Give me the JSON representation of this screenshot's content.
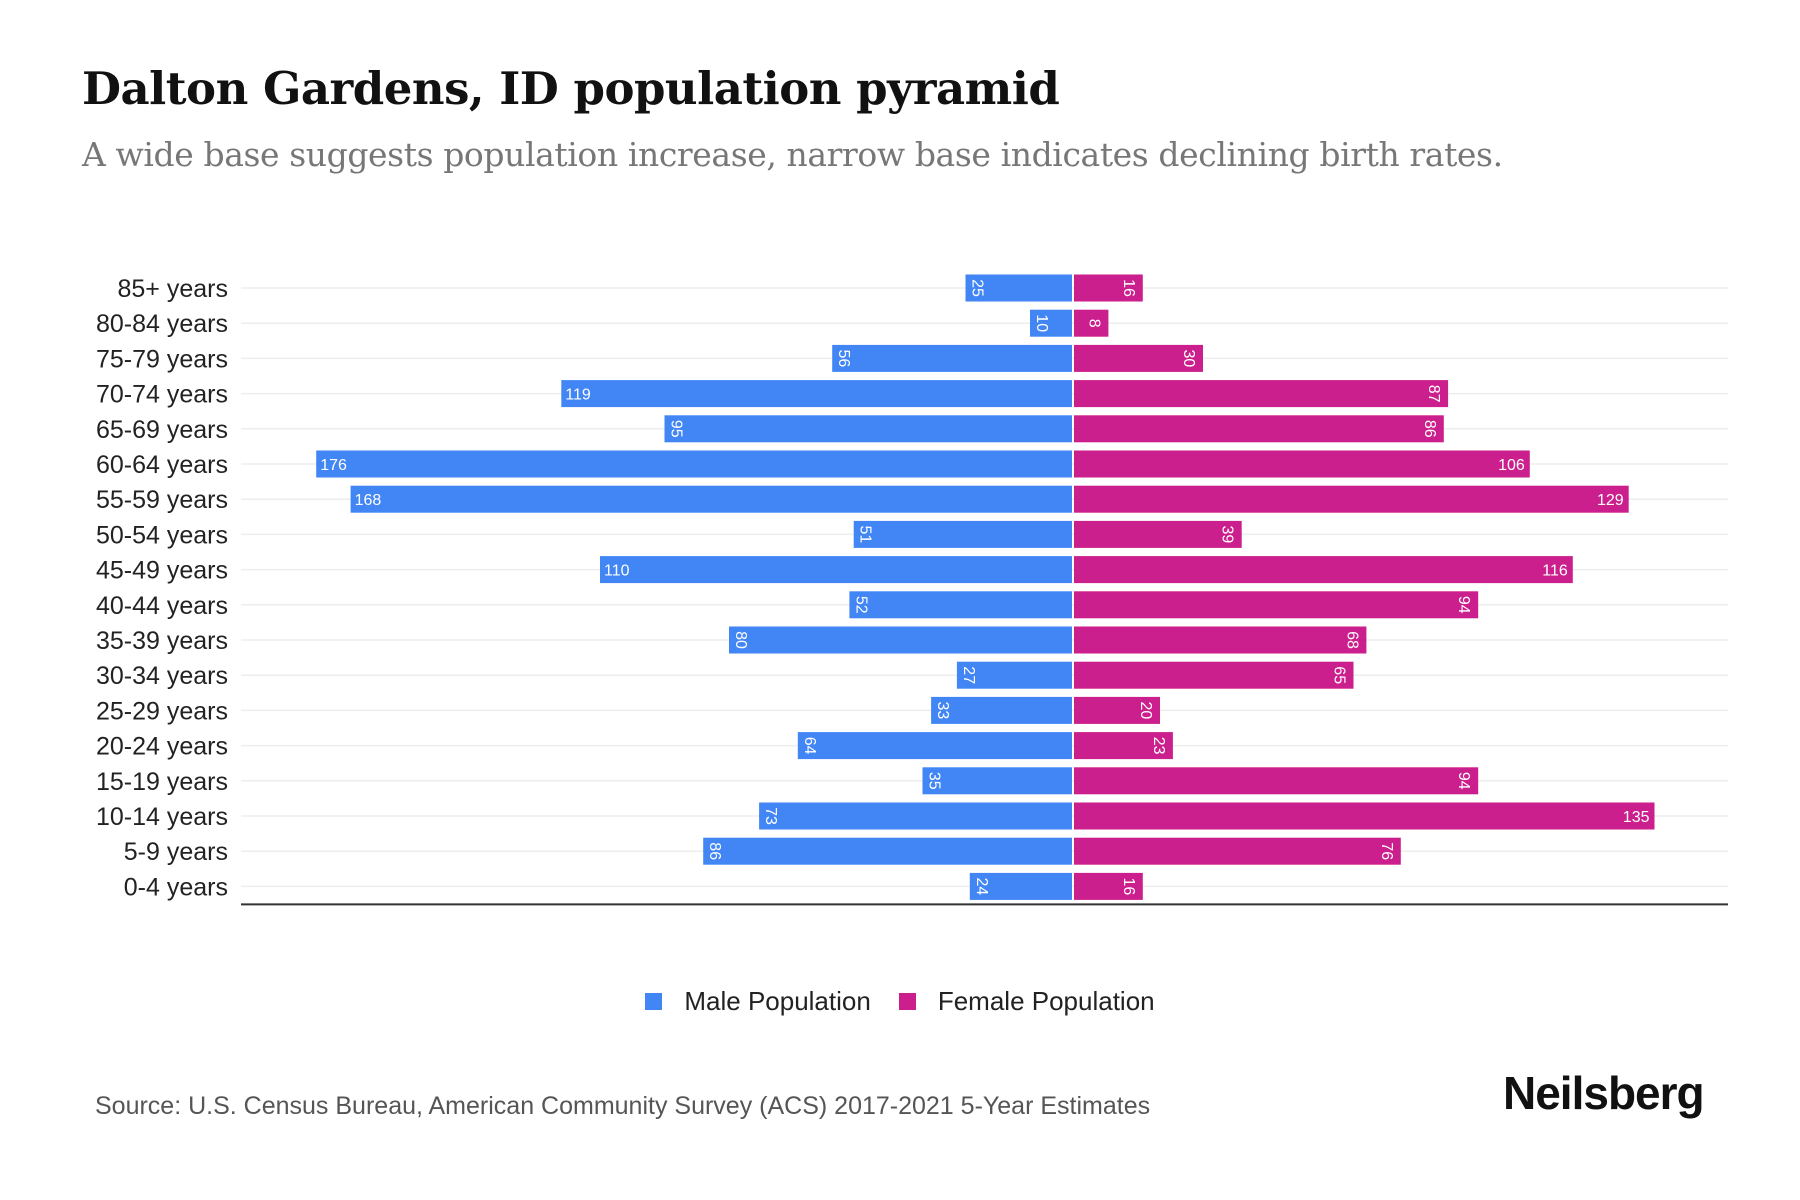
{
  "header": {
    "title": "Dalton Gardens, ID population pyramid",
    "subtitle": "A wide base suggests population increase, narrow base indicates declining birth rates."
  },
  "legend": {
    "male_label": "Male Population",
    "female_label": "Female Population"
  },
  "footer": {
    "source": "Source: U.S. Census Bureau, American Community Survey (ACS) 2017-2021 5-Year Estimates",
    "brand": "Neilsberg"
  },
  "colors": {
    "male": "#4285F4",
    "female": "#CC1F8E",
    "grid": "#EEEEEE",
    "axis": "#333333"
  },
  "chart_data": {
    "type": "bar",
    "orientation": "horizontal-pyramid",
    "title": "Dalton Gardens, ID population pyramid",
    "subtitle": "A wide base suggests population increase, narrow base indicates declining birth rates.",
    "xlabel": "",
    "ylabel": "",
    "grid": true,
    "legend_position": "bottom",
    "categories": [
      "85+ years",
      "80-84 years",
      "75-79 years",
      "70-74 years",
      "65-69 years",
      "60-64 years",
      "55-59 years",
      "50-54 years",
      "45-49 years",
      "40-44 years",
      "35-39 years",
      "30-34 years",
      "25-29 years",
      "20-24 years",
      "15-19 years",
      "10-14 years",
      "5-9 years",
      "0-4 years"
    ],
    "series": [
      {
        "name": "Male Population",
        "side": "left",
        "values": [
          25,
          10,
          56,
          119,
          95,
          176,
          168,
          51,
          110,
          52,
          80,
          27,
          33,
          64,
          35,
          73,
          86,
          24
        ]
      },
      {
        "name": "Female Population",
        "side": "right",
        "values": [
          16,
          8,
          30,
          87,
          86,
          106,
          129,
          39,
          116,
          94,
          68,
          65,
          20,
          23,
          94,
          135,
          76,
          16
        ]
      }
    ]
  }
}
